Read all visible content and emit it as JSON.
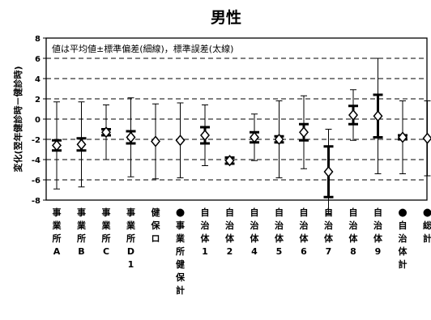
{
  "chart_data": {
    "type": "errorbar",
    "title": "男性",
    "annotation": "値は平均値±標準偏差(細線)，標準誤差(太線)",
    "ylabel": "変化(翌年健診時－健診時)",
    "ylim": [
      -8,
      8
    ],
    "yticks": [
      -8,
      -6,
      -4,
      -2,
      0,
      2,
      4,
      6,
      8
    ],
    "grid": "dashed-horizontal",
    "categories": [
      {
        "label": "事業所A",
        "lines": [
          "事",
          "業",
          "所",
          "A"
        ],
        "marker": "diamond"
      },
      {
        "label": "事業所B",
        "lines": [
          "事",
          "業",
          "所",
          "B"
        ],
        "marker": "diamond"
      },
      {
        "label": "事業所C",
        "lines": [
          "事",
          "業",
          "所",
          "C"
        ],
        "marker": "diamond"
      },
      {
        "label": "事業所D1",
        "lines": [
          "事",
          "業",
          "所",
          "D",
          "1"
        ],
        "marker": "diamond"
      },
      {
        "label": "健保ロ",
        "lines": [
          "健",
          "保",
          "ロ"
        ],
        "marker": "diamond"
      },
      {
        "label": "●事業所健保計",
        "lines": [
          "●",
          "事",
          "業",
          "所",
          "健",
          "保",
          "計"
        ],
        "marker": "diamond"
      },
      {
        "label": "自治体1",
        "lines": [
          "自",
          "治",
          "体",
          "1"
        ],
        "marker": "diamond"
      },
      {
        "label": "自治体2",
        "lines": [
          "自",
          "治",
          "体",
          "2"
        ],
        "marker": "diamond"
      },
      {
        "label": "自治体4",
        "lines": [
          "自",
          "治",
          "体",
          "4"
        ],
        "marker": "diamond"
      },
      {
        "label": "自治体5",
        "lines": [
          "自",
          "治",
          "体",
          "5"
        ],
        "marker": "diamond"
      },
      {
        "label": "自治体6",
        "lines": [
          "自",
          "治",
          "体",
          "6"
        ],
        "marker": "diamond"
      },
      {
        "label": "自治体7",
        "lines": [
          "自",
          "治",
          "体",
          "7"
        ],
        "marker": "diamond"
      },
      {
        "label": "自治体8",
        "lines": [
          "自",
          "治",
          "体",
          "8"
        ],
        "marker": "diamond"
      },
      {
        "label": "自治体9",
        "lines": [
          "自",
          "治",
          "体",
          "9"
        ],
        "marker": "diamond"
      },
      {
        "label": "●自治体計",
        "lines": [
          "●",
          "自",
          "治",
          "体",
          "計"
        ],
        "marker": "diamond"
      },
      {
        "label": "●総計",
        "lines": [
          "●",
          "総",
          "計"
        ],
        "marker": "diamond"
      }
    ],
    "mean": [
      -2.6,
      -2.5,
      -1.3,
      -1.8,
      -2.2,
      -2.1,
      -1.6,
      -4.1,
      -1.8,
      -2.0,
      -1.3,
      -5.2,
      0.4,
      0.3,
      -1.8,
      -1.9
    ],
    "sd": [
      4.3,
      4.2,
      2.7,
      3.9,
      3.7,
      3.7,
      3.0,
      0.0,
      2.3,
      3.8,
      3.6,
      4.2,
      2.5,
      5.7,
      3.6,
      3.7
    ],
    "se": [
      0.5,
      0.6,
      0.3,
      0.6,
      0.0,
      0.0,
      0.8,
      0.3,
      0.5,
      0.3,
      0.8,
      2.5,
      0.9,
      2.1,
      0.2,
      0.0
    ]
  }
}
